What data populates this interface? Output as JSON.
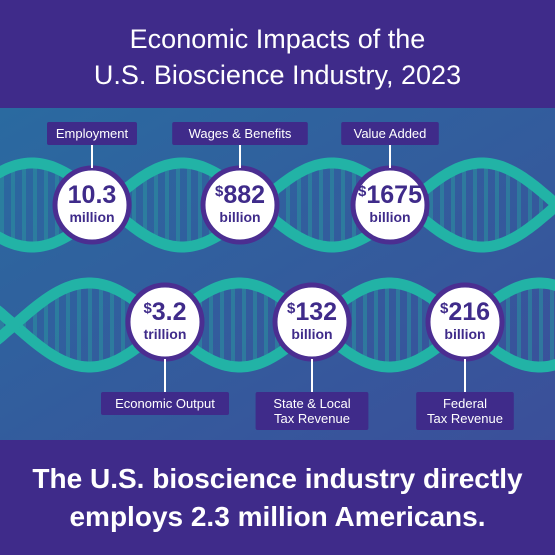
{
  "header": {
    "title": [
      "Economic Impacts of the",
      "U.S. Bioscience Industry, 2023"
    ]
  },
  "stats": [
    {
      "label": [
        "Employment"
      ],
      "value": "10.3",
      "unit": "million"
    },
    {
      "label": [
        "Wages & Benefits"
      ],
      "prefix": "$",
      "value": "882",
      "unit": "billion"
    },
    {
      "label": [
        "Value Added"
      ],
      "prefix": "$",
      "value": "1675",
      "unit": "billion"
    },
    {
      "label": [
        "Economic Output"
      ],
      "prefix": "$",
      "value": "3.2",
      "unit": "trillion"
    },
    {
      "label": [
        "State & Local",
        "Tax Revenue"
      ],
      "prefix": "$",
      "value": "132",
      "unit": "billion"
    },
    {
      "label": [
        "Federal",
        "Tax Revenue"
      ],
      "prefix": "$",
      "value": "216",
      "unit": "billion"
    }
  ],
  "footer": {
    "text": [
      "The U.S. bioscience industry directly",
      "employs 2.3 million Americans."
    ]
  }
}
